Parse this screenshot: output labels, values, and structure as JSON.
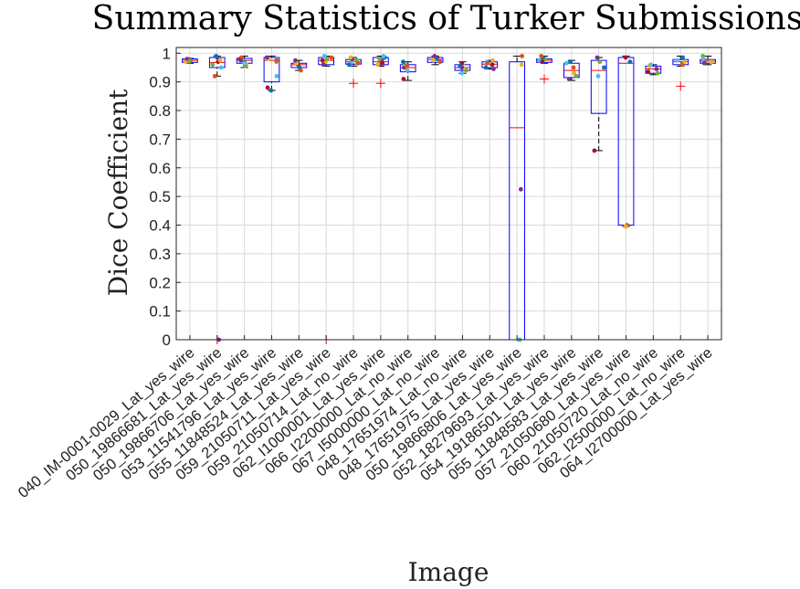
{
  "chart_data": {
    "type": "box",
    "title": "Summary Statistics of Turker Submissions",
    "xlabel": "Image",
    "ylabel": "Dice Coefficient",
    "ylim": [
      0,
      1.02
    ],
    "yticks": [
      0,
      0.1,
      0.2,
      0.3,
      0.4,
      0.5,
      0.6,
      0.7,
      0.8,
      0.9,
      1
    ],
    "ytick_labels": [
      "0",
      "0.1",
      "0.2",
      "0.3",
      "0.4",
      "0.5",
      "0.6",
      "0.7",
      "0.8",
      "0.9",
      "1"
    ],
    "grid": true,
    "colors": {
      "box": "#0000ff",
      "median": "#ff0000",
      "outlier": "#ff0000",
      "whisker": "#000000",
      "grid": "#d9d9d9"
    },
    "point_colors": [
      "#0072bd",
      "#d95319",
      "#edb120",
      "#7e2f8e",
      "#77ac30",
      "#4dbeee",
      "#a2142f"
    ],
    "categories": [
      "040_IM-0001-0029_Lat_yes_wire",
      "050_19866681_Lat_yes_wire",
      "050_19866706_Lat_yes_wire",
      "053_11541796_Lat_yes_wire",
      "055_11848524_Lat_yes_wire",
      "059_21050711_Lat_yes_wire",
      "059_21050714_Lat_no_wire",
      "062_I1000001_Lat_yes_wire",
      "066_I2200000_Lat_no_wire",
      "067_I5000000_Lat_no_wire",
      "048_17651974_Lat_no_wire",
      "048_17651975_Lat_yes_wire",
      "050_19866806_Lat_yes_wire",
      "052_18279693_Lat_yes_wire",
      "054_19186501_Lat_yes_wire",
      "055_11848583_Lat_yes_wire",
      "057_21050680_Lat_yes_wire",
      "060_21050720_Lat_no_wire",
      "062_I2500000_Lat_no_wire",
      "064_I2700000_Lat_yes_wire"
    ],
    "boxes": [
      {
        "whisker_low": 0.965,
        "q1": 0.968,
        "median": 0.975,
        "q3": 0.98,
        "whisker_high": 0.982,
        "outliers": [],
        "points": [
          0.978,
          0.975,
          0.97,
          0.98,
          0.972
        ]
      },
      {
        "whisker_low": 0.92,
        "q1": 0.95,
        "median": 0.968,
        "q3": 0.985,
        "whisker_high": 0.99,
        "outliers": [
          0.0
        ],
        "points": [
          0.985,
          0.96,
          0.95,
          0.97,
          0.99,
          0.92,
          0.975,
          0.0
        ]
      },
      {
        "whisker_low": 0.95,
        "q1": 0.965,
        "median": 0.975,
        "q3": 0.982,
        "whisker_high": 0.99,
        "outliers": [],
        "points": [
          0.98,
          0.97,
          0.985,
          0.96,
          0.975,
          0.955,
          0.965
        ]
      },
      {
        "whisker_low": 0.87,
        "q1": 0.9,
        "median": 0.975,
        "q3": 0.985,
        "whisker_high": 0.99,
        "outliers": [],
        "points": [
          0.98,
          0.985,
          0.97,
          0.92,
          0.88,
          0.87,
          0.975
        ]
      },
      {
        "whisker_low": 0.94,
        "q1": 0.95,
        "median": 0.96,
        "q3": 0.965,
        "whisker_high": 0.975,
        "outliers": [],
        "points": [
          0.97,
          0.96,
          0.95,
          0.94,
          0.965,
          0.975
        ]
      },
      {
        "whisker_low": 0.955,
        "q1": 0.96,
        "median": 0.975,
        "q3": 0.985,
        "whisker_high": 0.99,
        "outliers": [
          0.0
        ],
        "points": [
          0.985,
          0.97,
          0.96,
          0.98,
          0.99,
          0.975
        ]
      },
      {
        "whisker_low": 0.955,
        "q1": 0.962,
        "median": 0.97,
        "q3": 0.978,
        "whisker_high": 0.985,
        "outliers": [
          0.895
        ],
        "points": [
          0.975,
          0.97,
          0.98,
          0.96,
          0.965,
          0.985
        ]
      },
      {
        "whisker_low": 0.955,
        "q1": 0.96,
        "median": 0.97,
        "q3": 0.985,
        "whisker_high": 0.99,
        "outliers": [
          0.895
        ],
        "points": [
          0.985,
          0.97,
          0.96,
          0.975,
          0.98,
          0.99,
          0.965
        ]
      },
      {
        "whisker_low": 0.905,
        "q1": 0.935,
        "median": 0.95,
        "q3": 0.96,
        "whisker_high": 0.97,
        "outliers": [],
        "points": [
          0.95,
          0.96,
          0.94,
          0.91,
          0.97,
          0.955
        ]
      },
      {
        "whisker_low": 0.96,
        "q1": 0.968,
        "median": 0.978,
        "q3": 0.985,
        "whisker_high": 0.99,
        "outliers": [],
        "points": [
          0.985,
          0.98,
          0.97,
          0.975,
          0.99
        ]
      },
      {
        "whisker_low": 0.93,
        "q1": 0.94,
        "median": 0.95,
        "q3": 0.96,
        "whisker_high": 0.97,
        "outliers": [],
        "points": [
          0.96,
          0.95,
          0.94,
          0.93,
          0.965,
          0.955
        ]
      },
      {
        "whisker_low": 0.945,
        "q1": 0.95,
        "median": 0.962,
        "q3": 0.97,
        "whisker_high": 0.975,
        "outliers": [],
        "points": [
          0.97,
          0.96,
          0.95,
          0.965,
          0.975,
          0.945
        ]
      },
      {
        "whisker_low": 0.0,
        "q1": 0.0,
        "median": 0.74,
        "q3": 0.97,
        "whisker_high": 0.99,
        "outliers": [],
        "points": [
          0.99,
          0.96,
          0.525,
          0.0,
          0.0
        ]
      },
      {
        "whisker_low": 0.965,
        "q1": 0.968,
        "median": 0.975,
        "q3": 0.98,
        "whisker_high": 0.99,
        "outliers": [
          0.91
        ],
        "points": [
          0.98,
          0.975,
          0.97,
          0.985,
          0.99
        ]
      },
      {
        "whisker_low": 0.905,
        "q1": 0.915,
        "median": 0.94,
        "q3": 0.965,
        "whisker_high": 0.975,
        "outliers": [],
        "points": [
          0.97,
          0.95,
          0.93,
          0.91,
          0.92,
          0.965
        ]
      },
      {
        "whisker_low": 0.66,
        "q1": 0.79,
        "median": 0.94,
        "q3": 0.975,
        "whisker_high": 0.985,
        "outliers": [],
        "points": [
          0.985,
          0.97,
          0.92,
          0.66,
          0.95
        ]
      },
      {
        "whisker_low": 0.395,
        "q1": 0.4,
        "median": 0.965,
        "q3": 0.985,
        "whisker_high": 0.99,
        "outliers": [],
        "points": [
          0.985,
          0.97,
          0.4,
          0.395
        ]
      },
      {
        "whisker_low": 0.925,
        "q1": 0.93,
        "median": 0.945,
        "q3": 0.955,
        "whisker_high": 0.96,
        "outliers": [],
        "points": [
          0.955,
          0.945,
          0.93,
          0.96,
          0.935
        ]
      },
      {
        "whisker_low": 0.955,
        "q1": 0.96,
        "median": 0.97,
        "q3": 0.978,
        "whisker_high": 0.99,
        "outliers": [
          0.885
        ],
        "points": [
          0.975,
          0.965,
          0.985,
          0.96,
          0.97
        ]
      },
      {
        "whisker_low": 0.96,
        "q1": 0.965,
        "median": 0.972,
        "q3": 0.978,
        "whisker_high": 0.99,
        "outliers": [],
        "points": [
          0.975,
          0.97,
          0.965,
          0.99,
          0.98
        ]
      }
    ]
  }
}
